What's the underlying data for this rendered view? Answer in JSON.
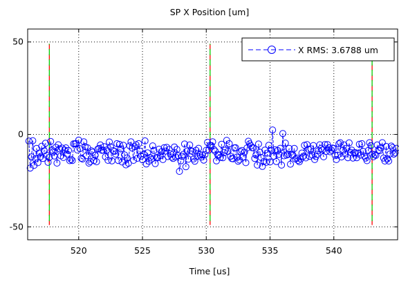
{
  "chart_data": {
    "type": "line",
    "title": "SP X Position [um]",
    "xlabel": "Time [us]",
    "ylabel": "",
    "xlim": [
      516,
      545
    ],
    "ylim": [
      -57,
      57
    ],
    "x_ticks": [
      520,
      525,
      530,
      535,
      540
    ],
    "y_ticks": [
      50,
      0,
      -50
    ],
    "x_tick_labels": [
      "520",
      "525",
      "530",
      "535",
      "540"
    ],
    "y_tick_labels": [
      "50",
      "0",
      "-50"
    ],
    "grid": "dotted",
    "legend_position": "top-right",
    "series": [
      {
        "name": "X RMS: 3.6788 um",
        "color": "#0000ff",
        "line_style": "dashed",
        "marker": "circle",
        "x_start": 516.1,
        "x_step": 0.1,
        "values": [
          -3.6,
          -18.2,
          -12.2,
          -3.4,
          -16.8,
          -13.2,
          -7.6,
          -15.3,
          -10.1,
          -12.1,
          -6.4,
          -13.0,
          -8.9,
          -4.8,
          -11.4,
          -15.1,
          -12.4,
          -3.8,
          -8.4,
          -9.5,
          -11.7,
          -7.0,
          -15.5,
          -5.6,
          -7.8,
          -11.6,
          -7.4,
          -12.5,
          -8.5,
          -7.3,
          -10.6,
          -8.7,
          -14.2,
          -13.5,
          -14.1,
          -5.1,
          -5.1,
          -4.9,
          -8.4,
          -3.1,
          -7.7,
          -12.9,
          -13.3,
          -4.0,
          -6.6,
          -11.5,
          -7.3,
          -15.5,
          -14.7,
          -8.9,
          -9.6,
          -14.2,
          -11.3,
          -14.8,
          -7.9,
          -7.6,
          -5.7,
          -8.6,
          -8.5,
          -6.6,
          -12.1,
          -8.4,
          -14.0,
          -4.1,
          -6.7,
          -14.3,
          -8.8,
          -9.2,
          -10.6,
          -5.0,
          -14.1,
          -5.4,
          -7.9,
          -14.9,
          -5.9,
          -11.1,
          -16.5,
          -12.7,
          -15.6,
          -6.2,
          -4.0,
          -7.4,
          -14.0,
          -6.6,
          -5.6,
          -12.9,
          -5.0,
          -9.0,
          -11.7,
          -13.7,
          -10.7,
          -3.5,
          -16.0,
          -10.0,
          -14.5,
          -12.5,
          -13.4,
          -6.2,
          -8.7,
          -15.8,
          -12.4,
          -12.6,
          -8.0,
          -11.6,
          -9.4,
          -13.6,
          -7.2,
          -9.0,
          -7.0,
          -12.0,
          -8.2,
          -10.5,
          -12.3,
          -13.0,
          -6.8,
          -12.2,
          -8.1,
          -11.5,
          -20.0,
          -14.3,
          -11.9,
          -10.8,
          -5.2,
          -17.5,
          -9.0,
          -13.4,
          -5.7,
          -8.8,
          -9.2,
          -13.3,
          -14.5,
          -8.6,
          -11.8,
          -7.5,
          -11.0,
          -12.3,
          -11.1,
          -13.9,
          -11.0,
          -8.6,
          -4.3,
          -8.5,
          -6.0,
          -6.1,
          -4.0,
          -8.2,
          -9.1,
          -14.3,
          -11.1,
          -11.0,
          -12.5,
          -5.3,
          -12.6,
          -9.9,
          -8.5,
          -3.2,
          -9.2,
          -5.0,
          -11.9,
          -13.1,
          -13.2,
          -7.3,
          -7.2,
          -12.3,
          -14.5,
          -13.8,
          -9.4,
          -8.7,
          -12.2,
          -9.6,
          -15.3,
          -7.3,
          -3.7,
          -5.1,
          -6.2,
          -7.2,
          -7.3,
          -13.0,
          -11.1,
          -16.6,
          -5.2,
          -9.6,
          -12.5,
          -17.3,
          -14.6,
          -8.5,
          -15.1,
          -10.1,
          -5.9,
          -14.9,
          -8.5,
          2.4,
          -11.8,
          -8.3,
          -14.7,
          -8.7,
          -10.8,
          -7.5,
          -16.6,
          0.5,
          -11.6,
          -4.7,
          -11.2,
          -10.7,
          -7.6,
          -16.1,
          -11.0,
          -11.3,
          -7.6,
          -13.3,
          -12.8,
          -14.1,
          -14.8,
          -13.3,
          -10.1,
          -11.9,
          -5.9,
          -12.7,
          -5.5,
          -8.0,
          -11.9,
          -7.8,
          -11.1,
          -6.0,
          -13.6,
          -12.0,
          -10.7,
          -8.8,
          -5.6,
          -7.6,
          -8.4,
          -12.1,
          -5.5,
          -9.2,
          -5.5,
          -7.2,
          -9.4,
          -8.5,
          -7.4,
          -7.6,
          -11.3,
          -13.6,
          -11.2,
          -5.1,
          -4.5,
          -12.2,
          -8.5,
          -5.7,
          -10.6,
          -7.6,
          -12.6,
          -4.6,
          -9.7,
          -8.5,
          -12.8,
          -9.9,
          -9.9,
          -12.6,
          -10.2,
          -5.3,
          -11.2,
          -5.0,
          -9.2,
          -11.7,
          -12.8,
          -14.2,
          -8.7,
          -4.5,
          -6.1,
          -10.6,
          -12.1,
          -11.0,
          -11.3,
          -5.7,
          -8.5,
          -8.8,
          -7.2,
          -4.5,
          -12.8,
          -14.4,
          -6.5,
          -13.2,
          -14.4,
          -10.6,
          -6.3,
          -7.1,
          -10.7,
          -10.0,
          -7.5
        ]
      }
    ],
    "annotations": [
      {
        "type": "vertical_line",
        "x": 517.7,
        "y_range": [
          -49,
          49
        ],
        "style": "dashed",
        "colors": [
          "#ff0000",
          "#00cc00"
        ]
      },
      {
        "type": "vertical_line",
        "x": 530.3,
        "y_range": [
          -49,
          49
        ],
        "style": "dashed",
        "colors": [
          "#ff0000",
          "#00cc00"
        ]
      },
      {
        "type": "vertical_line",
        "x": 543.0,
        "y_range": [
          -49,
          49
        ],
        "style": "dashed",
        "colors": [
          "#ff0000",
          "#00cc00"
        ]
      }
    ]
  }
}
